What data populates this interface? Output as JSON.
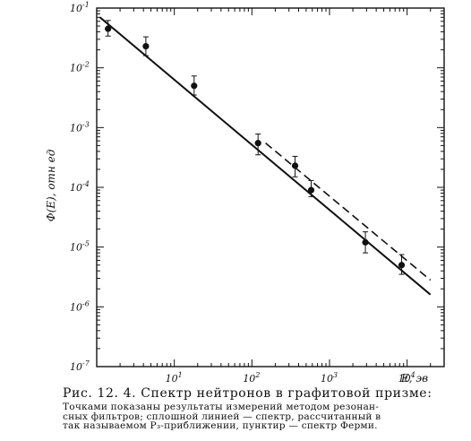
{
  "chart_data": {
    "type": "scatter",
    "xscale": "log",
    "yscale": "log",
    "xlim": [
      1,
      30000
    ],
    "ylim": [
      1e-07,
      0.1
    ],
    "x_ticks": [
      {
        "value": 10,
        "label": "10",
        "exp": "1"
      },
      {
        "value": 100,
        "label": "10",
        "exp": "2"
      },
      {
        "value": 1000,
        "label": "10",
        "exp": "3"
      },
      {
        "value": 10000,
        "label": "10",
        "exp": "4"
      }
    ],
    "y_ticks": [
      {
        "value": 0.1,
        "label": "10",
        "exp": "-1"
      },
      {
        "value": 0.01,
        "label": "10",
        "exp": "-2"
      },
      {
        "value": 0.001,
        "label": "10",
        "exp": "-3"
      },
      {
        "value": 0.0001,
        "label": "10",
        "exp": "-4"
      },
      {
        "value": 1e-05,
        "label": "10",
        "exp": "-5"
      },
      {
        "value": 1e-06,
        "label": "10",
        "exp": "-6"
      },
      {
        "value": 1e-07,
        "label": "10",
        "exp": "-7"
      }
    ],
    "xlabel": "E, эв",
    "ylabel": "Ф(E),  отн ед",
    "grid": false,
    "points": [
      {
        "x": 1.4,
        "y": 0.045,
        "err_low": 0.034,
        "err_high": 0.062
      },
      {
        "x": 4.3,
        "y": 0.023,
        "err_low": 0.016,
        "err_high": 0.033
      },
      {
        "x": 18,
        "y": 0.005,
        "err_low": 0.0035,
        "err_high": 0.0073
      },
      {
        "x": 120,
        "y": 0.00055,
        "err_low": 0.00035,
        "err_high": 0.00078
      },
      {
        "x": 360,
        "y": 0.00023,
        "err_low": 0.00015,
        "err_high": 0.00033
      },
      {
        "x": 580,
        "y": 9e-05,
        "err_low": 7e-05,
        "err_high": 0.00013
      },
      {
        "x": 2900,
        "y": 1.2e-05,
        "err_low": 8e-06,
        "err_high": 1.8e-05
      },
      {
        "x": 8500,
        "y": 5e-06,
        "err_low": 3.5e-06,
        "err_high": 7.5e-06
      }
    ],
    "series": [
      {
        "style": "solid",
        "x": [
          1.1,
          20000
        ],
        "y": [
          0.07,
          1.6e-06
        ]
      },
      {
        "style": "dashed",
        "x": [
          150,
          20000
        ],
        "y": [
          0.00055,
          2.8e-06
        ]
      }
    ]
  },
  "caption": {
    "title": "Рис. 12. 4. Спектр нейтронов в графитовой призме:",
    "lines": [
      "Точками показаны результаты измерений методом резонан-",
      "сных фильтров; сплошной линией — спектр, рассчитанный в",
      "так называемом P₃-приближении, пунктир — спектр Ферми."
    ]
  }
}
